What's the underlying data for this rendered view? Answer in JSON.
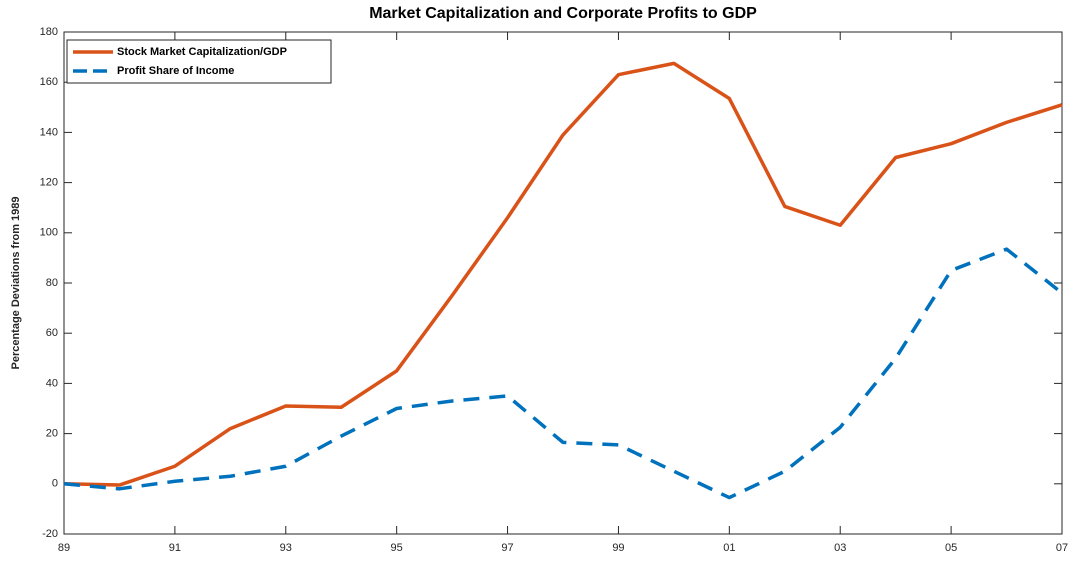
{
  "chart_data": {
    "type": "line",
    "title": "Market Capitalization and Corporate Profits to GDP",
    "y_label": "Percentage Deviations from 1989",
    "categories": [
      "89",
      null,
      "91",
      null,
      "93",
      null,
      "95",
      null,
      "97",
      null,
      "99",
      null,
      "01",
      null,
      "03",
      null,
      "05",
      null,
      "07"
    ],
    "series": [
      {
        "name": "Stock Market Capitalization/GDP",
        "color": "#d95319",
        "dash": false,
        "values": [
          0,
          -0.5,
          7,
          22,
          31,
          30.5,
          45,
          75,
          106,
          139,
          163,
          167.5,
          153.5,
          110.5,
          103,
          130,
          135.5,
          144,
          151
        ]
      },
      {
        "name": "Profit Share of Income",
        "color": "#0072bd",
        "dash": true,
        "values": [
          0,
          -2,
          1,
          3,
          7,
          19,
          30,
          33,
          35,
          16.5,
          15.5,
          5,
          -5.5,
          5,
          22.5,
          50,
          85,
          93.5,
          76
        ]
      }
    ],
    "ylim": [
      -20,
      180
    ],
    "yticks": [
      -20,
      0,
      20,
      40,
      60,
      80,
      100,
      120,
      140,
      160,
      180
    ],
    "grid": false,
    "legend": "upper-left"
  }
}
